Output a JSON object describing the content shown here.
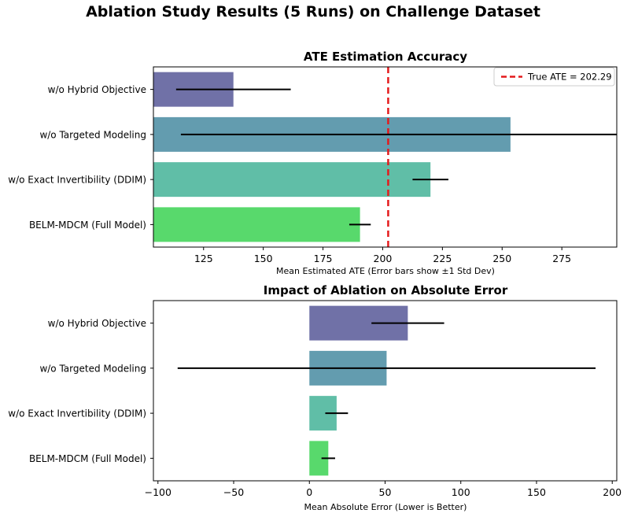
{
  "figure": {
    "suptitle": "Ablation Study Results (5 Runs) on Challenge Dataset"
  },
  "chart_data": [
    {
      "type": "bar",
      "orientation": "horizontal",
      "title": "ATE Estimation Accuracy",
      "xlabel": "Mean Estimated ATE (Error bars show ±1 Std Dev)",
      "ylabel": "",
      "xlim": [
        104,
        298
      ],
      "xticks": [
        125,
        150,
        175,
        200,
        225,
        250,
        275
      ],
      "categories": [
        "w/o Hybrid Objective",
        "w/o Targeted Modeling",
        "w/o Exact Invertibility (DDIM)",
        "BELM-MDCM (Full Model)"
      ],
      "values": [
        137.5,
        253.5,
        220.0,
        190.5
      ],
      "errors": [
        24.0,
        138.0,
        7.5,
        4.5
      ],
      "colors": [
        "#64659f",
        "#5694a8",
        "#52b99f",
        "#4ad65f"
      ],
      "reference_line": {
        "value": 202.29,
        "label": "True ATE = 202.29",
        "color": "#e41a1c",
        "style": "dashed"
      },
      "legend": {
        "position": "upper-right",
        "entries": [
          "True ATE = 202.29"
        ]
      }
    },
    {
      "type": "bar",
      "orientation": "horizontal",
      "title": "Impact of Ablation on Absolute Error",
      "xlabel": "Mean Absolute Error (Lower is Better)",
      "ylabel": "",
      "xlim": [
        -103,
        203
      ],
      "xticks": [
        -100,
        -50,
        0,
        50,
        100,
        150,
        200
      ],
      "categories": [
        "w/o Hybrid Objective",
        "w/o Targeted Modeling",
        "w/o Exact Invertibility (DDIM)",
        "BELM-MDCM (Full Model)"
      ],
      "values": [
        65.0,
        51.0,
        18.0,
        12.5
      ],
      "errors": [
        24.0,
        138.0,
        7.5,
        4.5
      ],
      "colors": [
        "#64659f",
        "#5694a8",
        "#52b99f",
        "#4ad65f"
      ]
    }
  ]
}
